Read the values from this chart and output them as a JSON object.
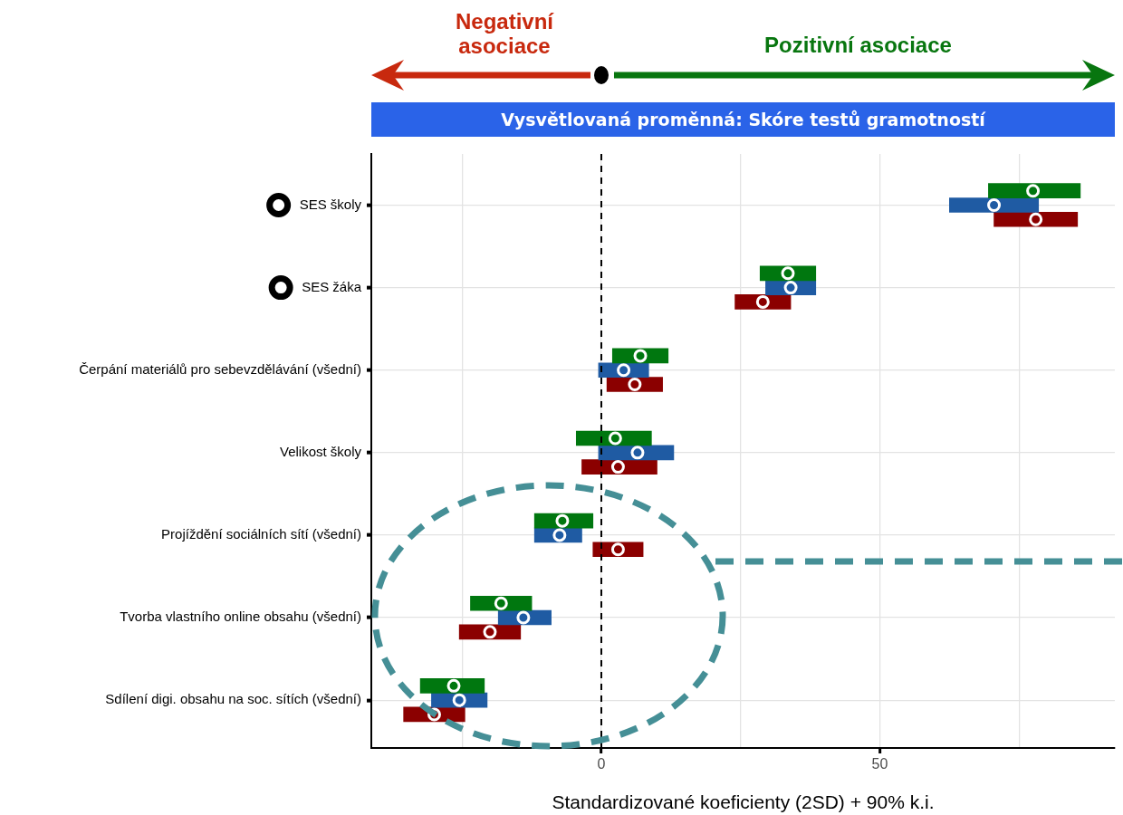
{
  "chart_data": {
    "type": "bar",
    "orientation": "horizontal",
    "title": "Vysvětlovaná proměnná: Skóre testů gramotností",
    "xlabel": "Standardizované koeficienty (2SD) + 90% k.i.",
    "annotations": [
      "Negativní asociace",
      "Pozitivní asociace"
    ],
    "categories": [
      "SES školy",
      "SES žáka",
      "Čerpání materiálů pro sebevzdělávání (všední)",
      "Velikost školy",
      "Projíždění sociálních sítí (všední)",
      "Tvorba vlastního online obsahu (všední)",
      "Sdílení digi. obsahu na soc. sítích (všední)"
    ],
    "series": [
      {
        "color": "#00770f",
        "base": [
          69.5,
          28.5,
          2,
          -4.5,
          -12,
          -23.5,
          -32.5
        ],
        "values": [
          16.5,
          10,
          10,
          13.5,
          10.5,
          11,
          11.5
        ]
      },
      {
        "color": "#1f5ba3",
        "base": [
          62.5,
          29.5,
          -0.5,
          -0.5,
          -12,
          -18.5,
          -30.5
        ],
        "values": [
          16,
          9,
          9,
          13.5,
          8.5,
          9.5,
          10
        ]
      },
      {
        "color": "#8b0000",
        "base": [
          70.5,
          24,
          1,
          -3.5,
          -1.5,
          -25.5,
          -35.5
        ],
        "values": [
          15,
          10,
          10,
          13.5,
          9,
          11,
          11
        ]
      },
      {
        "type": "scatter",
        "color": "#00770f",
        "values": [
          77.5,
          33.5,
          7,
          2.5,
          -7,
          -18,
          -26.5
        ]
      },
      {
        "type": "scatter",
        "color": "#1f5ba3",
        "values": [
          70.5,
          34,
          4,
          6.5,
          -7.5,
          -14,
          -25.5
        ]
      },
      {
        "type": "scatter",
        "color": "#8b0000",
        "values": [
          78,
          29,
          6,
          3,
          3,
          -20,
          -30
        ]
      }
    ],
    "xlim": [
      -41.3,
      92.2
    ],
    "xticks": [
      {
        "value": -25,
        "label": null
      },
      0,
      {
        "value": 25,
        "label": null
      },
      50,
      {
        "value": 75,
        "label": null
      }
    ],
    "ref_lines": [
      {
        "axis": "x",
        "value": 0,
        "line_style": "dashed",
        "color": "#000000"
      }
    ],
    "grid": true,
    "legend": false,
    "marker": "circle"
  }
}
